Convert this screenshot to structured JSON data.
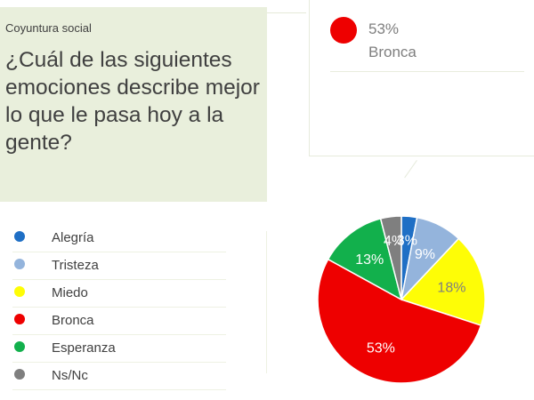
{
  "header": {
    "kicker": "Coyuntura social",
    "question": "¿Cuál de las siguientes emociones describe mejor lo que le pasa hoy a la gente?"
  },
  "callout": {
    "value": "53%",
    "label": "Bronca",
    "color": "#ee0000"
  },
  "chart_data": {
    "type": "pie",
    "title": "",
    "categories": [
      "Alegría",
      "Tristeza",
      "Miedo",
      "Bronca",
      "Esperanza",
      "Ns/Nc"
    ],
    "values": [
      3,
      9,
      18,
      53,
      13,
      4
    ],
    "labels": [
      "3%",
      "9%",
      "18%",
      "53%",
      "13%",
      "4%"
    ],
    "colors": [
      "#1f6fc5",
      "#94b4dc",
      "#fefd06",
      "#ee0000",
      "#12b04c",
      "#7f7f7f"
    ],
    "label_colors": [
      "#ffffff",
      "#ffffff",
      "#7f7f7f",
      "#ffffff",
      "#ffffff",
      "#ffffff"
    ],
    "start_angle_deg": 0,
    "legend_placement": "left"
  }
}
